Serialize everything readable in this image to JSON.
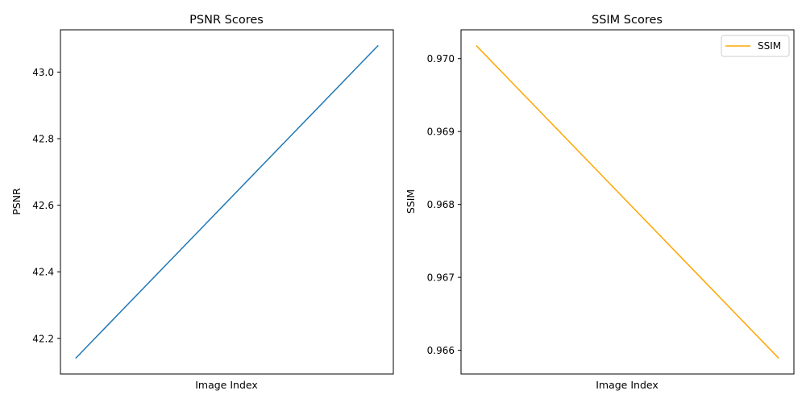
{
  "chart_data": [
    {
      "type": "line",
      "title": "PSNR Scores",
      "xlabel": "Image Index",
      "ylabel": "PSNR",
      "x": [
        0,
        1
      ],
      "series": [
        {
          "values": [
            42.14,
            43.08
          ],
          "color": "#1f77b4"
        }
      ],
      "xlim": [
        -0.05,
        1.05
      ],
      "ylim": [
        42.093,
        43.127
      ],
      "yticks": [
        42.2,
        42.4,
        42.6,
        42.8,
        43.0
      ],
      "ytick_labels": [
        "42.2",
        "42.4",
        "42.6",
        "42.8",
        "43.0"
      ],
      "xticks_visible": false,
      "grid": false,
      "legend": null
    },
    {
      "type": "line",
      "title": "SSIM Scores",
      "xlabel": "Image Index",
      "ylabel": "SSIM",
      "x": [
        0,
        1
      ],
      "series": [
        {
          "name": "SSIM",
          "values": [
            0.97018,
            0.96589
          ],
          "color": "#ffa500"
        }
      ],
      "xlim": [
        -0.05,
        1.05
      ],
      "ylim": [
        0.965675,
        0.970395
      ],
      "yticks": [
        0.966,
        0.967,
        0.968,
        0.969,
        0.97
      ],
      "ytick_labels": [
        "0.966",
        "0.967",
        "0.968",
        "0.969",
        "0.970"
      ],
      "xticks_visible": false,
      "grid": false,
      "legend": "upper right"
    }
  ]
}
